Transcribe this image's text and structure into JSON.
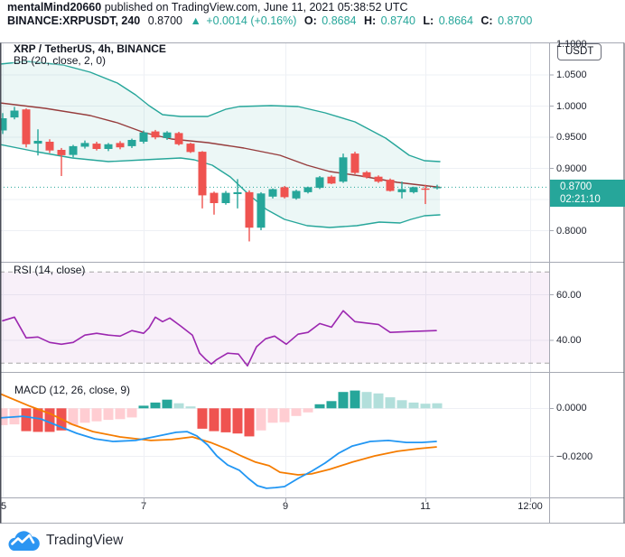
{
  "header": {
    "line1": {
      "author": "mentalMind20660",
      "rest": " published on TradingView.com, June 11, 2021 05:38:52 UTC"
    },
    "line2": {
      "symbol": "BINANCE:XRPUSDT, 240",
      "price": "0.8700",
      "arrow": "▲",
      "change": "+0.0014 (+0.16%)",
      "o_label": "O:",
      "o": "0.8684",
      "h_label": "H:",
      "h": "0.8740",
      "l_label": "L:",
      "l": "0.8664",
      "c_label": "C:",
      "c": "0.8700"
    }
  },
  "main_pane": {
    "legend_title": "XRP / TetherUS, 4h, BINANCE",
    "legend_indicator": "BB (20, close, 2, 0)",
    "currency_badge": "USDT",
    "price_badge": {
      "price": "0.8700",
      "countdown": "02:21:10"
    }
  },
  "rsi_pane": {
    "legend": "RSI (14, close)"
  },
  "macd_pane": {
    "legend": "MACD (12, 26, close, 9)"
  },
  "price_axis": {
    "labels": [
      {
        "text": "1.1000",
        "value": 1.1
      },
      {
        "text": "1.0500",
        "value": 1.05
      },
      {
        "text": "1.0000",
        "value": 1.0
      },
      {
        "text": "0.9500",
        "value": 0.95
      },
      {
        "text": "0.9000",
        "value": 0.9
      },
      {
        "text": "0.8000",
        "value": 0.8
      }
    ]
  },
  "rsi_axis": {
    "labels": [
      {
        "text": "60.00",
        "value": 60
      },
      {
        "text": "40.00",
        "value": 40
      }
    ]
  },
  "macd_axis": {
    "labels": [
      {
        "text": "0.0000",
        "value": 0
      },
      {
        "text": "−0.0200",
        "value": -0.02
      }
    ]
  },
  "time_axis": {
    "labels": [
      {
        "text": "5",
        "x": 4
      },
      {
        "text": "7",
        "x": 159
      },
      {
        "text": "9",
        "x": 316
      },
      {
        "text": "11",
        "x": 471
      },
      {
        "text": "12:00",
        "x": 587
      }
    ],
    "gridlines": [
      3,
      159,
      316,
      471,
      587
    ]
  },
  "footer": {
    "brand": "TradingView"
  },
  "colors": {
    "up": "#26a69a",
    "down": "#ef5350",
    "bb_line": "#26a69a",
    "bb_basis": "#963c3c",
    "bb_fill_opacity": 0.085,
    "rsi_line": "#9c27b0",
    "rsi_band_fill": "#9c27b0",
    "rsi_band_opacity": 0.07,
    "macd_line": "#2196f3",
    "signal_line": "#f57c00",
    "hist": {
      "red": "#ef5350",
      "pink": "#ffcdd2",
      "teal": "#26a69a",
      "lightteal": "#b2dfdb"
    },
    "badge_bg": "#26a69a",
    "grid": "#eef0f5",
    "frame": "#a6a9b3",
    "edge": "#4a4d57",
    "dashed_level": "#a6a6a6",
    "brand_blue": "#2b95f2"
  },
  "chart_data": [
    {
      "type": "candlestick",
      "title": "XRP / TetherUS, 4h, BINANCE",
      "indicator": "BB (20, close, 2, 0)",
      "exchange": "BINANCE",
      "symbol": "XRP/USDT",
      "interval": "4h",
      "x_start": "June 5, 2021 00:00 UTC",
      "ylim": [
        0.75,
        1.1
      ],
      "last_price": 0.87,
      "ohlc_display": {
        "open": 0.8684,
        "high": 0.874,
        "low": 0.8664,
        "close": 0.87
      },
      "candles": [
        [
          0.9612,
          0.989,
          0.9555,
          0.9807
        ],
        [
          0.982,
          0.999,
          0.979,
          0.993
        ],
        [
          0.995,
          0.9965,
          0.934,
          0.939
        ],
        [
          0.94,
          0.963,
          0.921,
          0.9445
        ],
        [
          0.943,
          0.947,
          0.925,
          0.929
        ],
        [
          0.93,
          0.933,
          0.888,
          0.9215
        ],
        [
          0.922,
          0.938,
          0.918,
          0.936
        ],
        [
          0.935,
          0.945,
          0.932,
          0.941
        ],
        [
          0.94,
          0.943,
          0.929,
          0.9315
        ],
        [
          0.9315,
          0.941,
          0.928,
          0.939
        ],
        [
          0.941,
          0.944,
          0.931,
          0.934
        ],
        [
          0.936,
          0.948,
          0.933,
          0.946
        ],
        [
          0.943,
          0.961,
          0.94,
          0.958
        ],
        [
          0.9595,
          0.962,
          0.947,
          0.95
        ],
        [
          0.949,
          0.96,
          0.946,
          0.958
        ],
        [
          0.957,
          0.959,
          0.937,
          0.939
        ],
        [
          0.94,
          0.9415,
          0.925,
          0.9265
        ],
        [
          0.927,
          0.928,
          0.836,
          0.857
        ],
        [
          0.861,
          0.863,
          0.826,
          0.8445
        ],
        [
          0.8445,
          0.864,
          0.842,
          0.861
        ],
        [
          0.859,
          0.883,
          0.836,
          0.862
        ],
        [
          0.862,
          0.865,
          0.783,
          0.805
        ],
        [
          0.805,
          0.862,
          0.801,
          0.86
        ],
        [
          0.855,
          0.868,
          0.852,
          0.867
        ],
        [
          0.87,
          0.872,
          0.852,
          0.854
        ],
        [
          0.852,
          0.866,
          0.85,
          0.864
        ],
        [
          0.862,
          0.871,
          0.86,
          0.87
        ],
        [
          0.869,
          0.888,
          0.867,
          0.886
        ],
        [
          0.887,
          0.889,
          0.875,
          0.876
        ],
        [
          0.879,
          0.924,
          0.877,
          0.918
        ],
        [
          0.924,
          0.927,
          0.891,
          0.893
        ],
        [
          0.894,
          0.896,
          0.884,
          0.886
        ],
        [
          0.887,
          0.889,
          0.877,
          0.879
        ],
        [
          0.882,
          0.884,
          0.863,
          0.864
        ],
        [
          0.862,
          0.879,
          0.852,
          0.867
        ],
        [
          0.862,
          0.871,
          0.86,
          0.87
        ],
        [
          0.868,
          0.874,
          0.843,
          0.866
        ],
        [
          0.8684,
          0.874,
          0.8664,
          0.87
        ]
      ],
      "bollinger": {
        "upper": [
          [
            0,
            1.0677
          ],
          [
            30,
            1.072
          ],
          [
            70,
            1.0662
          ],
          [
            100,
            1.0546
          ],
          [
            130,
            1.0372
          ],
          [
            150,
            1.0184
          ],
          [
            165,
            1.001
          ],
          [
            180,
            0.9865
          ],
          [
            200,
            0.9836
          ],
          [
            230,
            0.9836
          ],
          [
            250,
            0.9952
          ],
          [
            265,
            0.9996
          ],
          [
            300,
            1.001
          ],
          [
            330,
            0.9996
          ],
          [
            360,
            0.9894
          ],
          [
            393,
            0.9749
          ],
          [
            427,
            0.9489
          ],
          [
            453,
            0.9213
          ],
          [
            470,
            0.9126
          ],
          [
            487,
            0.9112
          ]
        ],
        "basis": [
          [
            0,
            1.0054
          ],
          [
            50,
            0.9967
          ],
          [
            100,
            0.9851
          ],
          [
            130,
            0.9735
          ],
          [
            160,
            0.9575
          ],
          [
            190,
            0.9474
          ],
          [
            230,
            0.9416
          ],
          [
            270,
            0.9329
          ],
          [
            310,
            0.9213
          ],
          [
            340,
            0.9054
          ],
          [
            365,
            0.8952
          ],
          [
            400,
            0.888
          ],
          [
            440,
            0.8778
          ],
          [
            487,
            0.8699
          ]
        ],
        "lower": [
          [
            0,
            0.9387
          ],
          [
            40,
            0.9271
          ],
          [
            80,
            0.917
          ],
          [
            120,
            0.9112
          ],
          [
            160,
            0.9141
          ],
          [
            200,
            0.917
          ],
          [
            215,
            0.9141
          ],
          [
            235,
            0.9054
          ],
          [
            255,
            0.8865
          ],
          [
            275,
            0.859
          ],
          [
            295,
            0.8343
          ],
          [
            315,
            0.8184
          ],
          [
            340,
            0.8083
          ],
          [
            365,
            0.8054
          ],
          [
            395,
            0.8083
          ],
          [
            420,
            0.8141
          ],
          [
            443,
            0.8126
          ],
          [
            455,
            0.8184
          ],
          [
            470,
            0.8242
          ],
          [
            487,
            0.8257
          ]
        ]
      }
    },
    {
      "type": "line",
      "title": "RSI (14, close)",
      "levels": {
        "overbought": 70,
        "oversold": 30,
        "label_levels": [
          60,
          40
        ]
      },
      "points": [
        [
          3,
          48.6
        ],
        [
          16,
          50.2
        ],
        [
          29,
          41.1
        ],
        [
          42,
          41.5
        ],
        [
          55,
          39.1
        ],
        [
          68,
          38.3
        ],
        [
          81,
          39.1
        ],
        [
          94,
          42.3
        ],
        [
          107,
          43.1
        ],
        [
          120,
          42.3
        ],
        [
          133,
          41.9
        ],
        [
          146,
          44.3
        ],
        [
          159,
          43.1
        ],
        [
          165,
          45.5
        ],
        [
          172,
          50.2
        ],
        [
          180,
          48.2
        ],
        [
          188,
          49.8
        ],
        [
          200,
          46.3
        ],
        [
          213,
          42.3
        ],
        [
          221,
          34.4
        ],
        [
          228,
          31.6
        ],
        [
          234,
          29.6
        ],
        [
          240,
          31.6
        ],
        [
          252,
          34.4
        ],
        [
          264,
          34.0
        ],
        [
          274,
          28.8
        ],
        [
          284,
          37.2
        ],
        [
          294,
          40.7
        ],
        [
          304,
          41.9
        ],
        [
          317,
          38.3
        ],
        [
          330,
          42.7
        ],
        [
          341,
          43.5
        ],
        [
          354,
          47.4
        ],
        [
          367,
          45.8
        ],
        [
          380,
          53.0
        ],
        [
          393,
          48.2
        ],
        [
          419,
          47.0
        ],
        [
          432,
          43.5
        ],
        [
          455,
          43.9
        ],
        [
          483,
          44.3
        ]
      ]
    },
    {
      "type": "macd",
      "title": "MACD (12, 26, close, 9)",
      "histogram": [
        -0.007,
        -0.0067,
        -0.0095,
        -0.0098,
        -0.0098,
        -0.0092,
        -0.007,
        -0.006,
        -0.0054,
        -0.0048,
        -0.0045,
        -0.0038,
        0.0011,
        0.0024,
        0.0036,
        0.0021,
        0.0008,
        -0.0085,
        -0.0095,
        -0.01,
        -0.0105,
        -0.0117,
        -0.0092,
        -0.006,
        -0.0058,
        -0.0032,
        -0.0017,
        0.0017,
        0.003,
        0.0068,
        0.0074,
        0.0068,
        0.0062,
        0.0046,
        0.0034,
        0.0024,
        0.0019,
        0.0021
      ],
      "histogram_colors": [
        "pink",
        "pink",
        "red",
        "red",
        "red",
        "red",
        "pink",
        "pink",
        "pink",
        "pink",
        "pink",
        "pink",
        "teal",
        "teal",
        "teal",
        "lightteal",
        "lightteal",
        "red",
        "red",
        "red",
        "red",
        "red",
        "pink",
        "pink",
        "pink",
        "pink",
        "pink",
        "teal",
        "teal",
        "teal",
        "teal",
        "lightteal",
        "lightteal",
        "lightteal",
        "lightteal",
        "lightteal",
        "lightteal",
        "lightteal"
      ],
      "macd_line": [
        [
          0,
          -0.004
        ],
        [
          15,
          -0.0036
        ],
        [
          25,
          -0.0033
        ],
        [
          45,
          -0.0044
        ],
        [
          65,
          -0.0074
        ],
        [
          85,
          -0.0104
        ],
        [
          105,
          -0.0127
        ],
        [
          125,
          -0.0138
        ],
        [
          150,
          -0.0134
        ],
        [
          170,
          -0.0119
        ],
        [
          195,
          -0.01
        ],
        [
          207,
          -0.0097
        ],
        [
          218,
          -0.0115
        ],
        [
          230,
          -0.0153
        ],
        [
          240,
          -0.0198
        ],
        [
          252,
          -0.0236
        ],
        [
          265,
          -0.0258
        ],
        [
          275,
          -0.0292
        ],
        [
          285,
          -0.0322
        ],
        [
          295,
          -0.0333
        ],
        [
          305,
          -0.033
        ],
        [
          315,
          -0.0326
        ],
        [
          330,
          -0.0292
        ],
        [
          345,
          -0.0262
        ],
        [
          360,
          -0.0228
        ],
        [
          375,
          -0.0187
        ],
        [
          390,
          -0.0157
        ],
        [
          410,
          -0.0138
        ],
        [
          430,
          -0.0134
        ],
        [
          450,
          -0.0142
        ],
        [
          467,
          -0.0142
        ],
        [
          483,
          -0.0138
        ]
      ],
      "signal_line": [
        [
          0,
          0.0061
        ],
        [
          33,
          0.0009
        ],
        [
          57,
          -0.0025
        ],
        [
          80,
          -0.0067
        ],
        [
          103,
          -0.0097
        ],
        [
          133,
          -0.0119
        ],
        [
          167,
          -0.0134
        ],
        [
          190,
          -0.013
        ],
        [
          213,
          -0.0119
        ],
        [
          233,
          -0.0142
        ],
        [
          253,
          -0.0172
        ],
        [
          267,
          -0.0198
        ],
        [
          283,
          -0.0224
        ],
        [
          298,
          -0.0239
        ],
        [
          310,
          -0.0266
        ],
        [
          330,
          -0.0277
        ],
        [
          345,
          -0.0273
        ],
        [
          365,
          -0.0254
        ],
        [
          390,
          -0.0224
        ],
        [
          415,
          -0.0198
        ],
        [
          440,
          -0.0179
        ],
        [
          463,
          -0.0168
        ],
        [
          483,
          -0.0161
        ]
      ]
    }
  ]
}
